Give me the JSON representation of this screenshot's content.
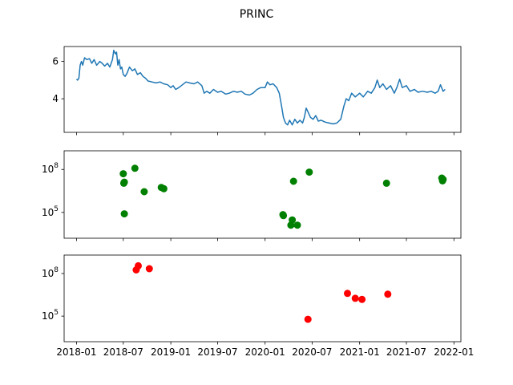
{
  "figure": {
    "title": "PRINC"
  },
  "chart_data": [
    {
      "type": "line",
      "panel": "top",
      "title": "PRINC",
      "xlabel": "",
      "ylabel": "",
      "ylim": [
        2.2,
        6.8
      ],
      "yticks": [
        4,
        6
      ],
      "ytick_labels": [
        "4",
        "6"
      ],
      "grid": false,
      "series": [
        {
          "color": "#1f77b4",
          "points": [
            [
              "2018-01-01",
              5.05
            ],
            [
              "2018-01-05",
              5.0
            ],
            [
              "2018-01-10",
              5.1
            ],
            [
              "2018-01-15",
              5.8
            ],
            [
              "2018-01-20",
              6.0
            ],
            [
              "2018-01-25",
              5.8
            ],
            [
              "2018-02-01",
              6.2
            ],
            [
              "2018-02-10",
              6.1
            ],
            [
              "2018-02-20",
              6.15
            ],
            [
              "2018-03-01",
              5.9
            ],
            [
              "2018-03-10",
              6.1
            ],
            [
              "2018-03-20",
              5.8
            ],
            [
              "2018-04-01",
              6.0
            ],
            [
              "2018-04-10",
              5.9
            ],
            [
              "2018-04-20",
              5.75
            ],
            [
              "2018-05-01",
              5.9
            ],
            [
              "2018-05-10",
              5.7
            ],
            [
              "2018-05-20",
              6.1
            ],
            [
              "2018-05-25",
              6.6
            ],
            [
              "2018-06-01",
              6.4
            ],
            [
              "2018-06-05",
              6.5
            ],
            [
              "2018-06-10",
              5.8
            ],
            [
              "2018-06-15",
              6.1
            ],
            [
              "2018-06-20",
              5.6
            ],
            [
              "2018-06-25",
              5.7
            ],
            [
              "2018-07-01",
              5.3
            ],
            [
              "2018-07-08",
              5.2
            ],
            [
              "2018-07-15",
              5.35
            ],
            [
              "2018-07-25",
              5.7
            ],
            [
              "2018-08-05",
              5.5
            ],
            [
              "2018-08-15",
              5.6
            ],
            [
              "2018-08-25",
              5.3
            ],
            [
              "2018-09-05",
              5.4
            ],
            [
              "2018-09-15",
              5.2
            ],
            [
              "2018-09-25",
              5.1
            ],
            [
              "2018-10-05",
              4.95
            ],
            [
              "2018-10-20",
              4.9
            ],
            [
              "2018-11-05",
              4.85
            ],
            [
              "2018-11-20",
              4.9
            ],
            [
              "2018-12-05",
              4.8
            ],
            [
              "2018-12-20",
              4.75
            ],
            [
              "2019-01-01",
              4.6
            ],
            [
              "2019-01-10",
              4.7
            ],
            [
              "2019-01-20",
              4.5
            ],
            [
              "2019-02-01",
              4.6
            ],
            [
              "2019-02-15",
              4.75
            ],
            [
              "2019-03-01",
              4.9
            ],
            [
              "2019-03-15",
              4.85
            ],
            [
              "2019-04-01",
              4.8
            ],
            [
              "2019-04-15",
              4.9
            ],
            [
              "2019-05-01",
              4.7
            ],
            [
              "2019-05-10",
              4.3
            ],
            [
              "2019-05-20",
              4.4
            ],
            [
              "2019-06-01",
              4.3
            ],
            [
              "2019-06-15",
              4.5
            ],
            [
              "2019-07-01",
              4.35
            ],
            [
              "2019-07-15",
              4.4
            ],
            [
              "2019-08-01",
              4.25
            ],
            [
              "2019-08-15",
              4.3
            ],
            [
              "2019-09-01",
              4.4
            ],
            [
              "2019-09-15",
              4.35
            ],
            [
              "2019-10-01",
              4.4
            ],
            [
              "2019-10-15",
              4.25
            ],
            [
              "2019-11-01",
              4.2
            ],
            [
              "2019-11-15",
              4.3
            ],
            [
              "2019-12-01",
              4.5
            ],
            [
              "2019-12-15",
              4.6
            ],
            [
              "2020-01-01",
              4.6
            ],
            [
              "2020-01-10",
              4.9
            ],
            [
              "2020-01-20",
              4.75
            ],
            [
              "2020-02-01",
              4.8
            ],
            [
              "2020-02-15",
              4.6
            ],
            [
              "2020-02-25",
              4.3
            ],
            [
              "2020-03-05",
              3.6
            ],
            [
              "2020-03-12",
              3.0
            ],
            [
              "2020-03-20",
              2.7
            ],
            [
              "2020-03-28",
              2.6
            ],
            [
              "2020-04-05",
              2.85
            ],
            [
              "2020-04-15",
              2.6
            ],
            [
              "2020-04-25",
              2.9
            ],
            [
              "2020-05-05",
              2.7
            ],
            [
              "2020-05-15",
              2.85
            ],
            [
              "2020-05-25",
              2.7
            ],
            [
              "2020-06-01",
              3.0
            ],
            [
              "2020-06-08",
              3.5
            ],
            [
              "2020-06-15",
              3.3
            ],
            [
              "2020-06-25",
              3.0
            ],
            [
              "2020-07-05",
              2.9
            ],
            [
              "2020-07-15",
              3.1
            ],
            [
              "2020-07-25",
              2.8
            ],
            [
              "2020-08-05",
              2.85
            ],
            [
              "2020-08-20",
              2.75
            ],
            [
              "2020-09-05",
              2.7
            ],
            [
              "2020-09-20",
              2.65
            ],
            [
              "2020-10-05",
              2.7
            ],
            [
              "2020-10-20",
              2.9
            ],
            [
              "2020-11-01",
              3.6
            ],
            [
              "2020-11-10",
              4.0
            ],
            [
              "2020-11-20",
              3.9
            ],
            [
              "2020-12-01",
              4.3
            ],
            [
              "2020-12-15",
              4.1
            ],
            [
              "2021-01-01",
              4.3
            ],
            [
              "2021-01-15",
              4.1
            ],
            [
              "2021-02-01",
              4.4
            ],
            [
              "2021-02-15",
              4.3
            ],
            [
              "2021-03-01",
              4.6
            ],
            [
              "2021-03-10",
              5.0
            ],
            [
              "2021-03-20",
              4.6
            ],
            [
              "2021-04-01",
              4.8
            ],
            [
              "2021-04-15",
              4.5
            ],
            [
              "2021-05-01",
              4.7
            ],
            [
              "2021-05-15",
              4.3
            ],
            [
              "2021-05-25",
              4.6
            ],
            [
              "2021-06-05",
              5.05
            ],
            [
              "2021-06-15",
              4.6
            ],
            [
              "2021-07-01",
              4.7
            ],
            [
              "2021-07-15",
              4.4
            ],
            [
              "2021-08-01",
              4.5
            ],
            [
              "2021-08-15",
              4.35
            ],
            [
              "2021-09-01",
              4.4
            ],
            [
              "2021-09-20",
              4.35
            ],
            [
              "2021-10-05",
              4.4
            ],
            [
              "2021-10-20",
              4.3
            ],
            [
              "2021-11-01",
              4.4
            ],
            [
              "2021-11-10",
              4.75
            ],
            [
              "2021-11-20",
              4.4
            ],
            [
              "2021-11-28",
              4.5
            ]
          ]
        }
      ]
    },
    {
      "type": "scatter",
      "panel": "middle",
      "xlabel": "",
      "ylabel": "",
      "yscale": "log",
      "ylim_log10": [
        3.2,
        9.3
      ],
      "yticks_log10": [
        5,
        8
      ],
      "ytick_labels": [
        "10^5",
        "10^8"
      ],
      "grid": false,
      "series": [
        {
          "color": "#008000",
          "points": [
            [
              "2018-07-01",
              50000000.0
            ],
            [
              "2018-07-03",
              11000000.0
            ],
            [
              "2018-07-05",
              13000000.0
            ],
            [
              "2018-07-05",
              80000.0
            ],
            [
              "2018-08-15",
              120000000.0
            ],
            [
              "2018-09-20",
              2800000.0
            ],
            [
              "2018-11-25",
              5500000.0
            ],
            [
              "2018-12-05",
              4500000.0
            ],
            [
              "2020-03-10",
              70000.0
            ],
            [
              "2020-03-12",
              60000.0
            ],
            [
              "2020-04-10",
              13000.0
            ],
            [
              "2020-04-15",
              30000.0
            ],
            [
              "2020-04-20",
              15000000.0
            ],
            [
              "2020-05-05",
              13000.0
            ],
            [
              "2020-06-20",
              65000000.0
            ],
            [
              "2021-04-15",
              11000000.0
            ],
            [
              "2021-11-15",
              25000000.0
            ],
            [
              "2021-11-18",
              16000000.0
            ],
            [
              "2021-11-20",
              20000000.0
            ]
          ]
        }
      ]
    },
    {
      "type": "scatter",
      "panel": "bottom",
      "xlabel": "",
      "ylabel": "",
      "yscale": "log",
      "ylim_log10": [
        3.2,
        9.3
      ],
      "yticks_log10": [
        5,
        8
      ],
      "ytick_labels": [
        "10^5",
        "10^8"
      ],
      "grid": false,
      "xticks": [
        "2018-01",
        "2018-07",
        "2019-01",
        "2019-07",
        "2020-01",
        "2020-07",
        "2021-01",
        "2021-07",
        "2022-01"
      ],
      "series": [
        {
          "color": "#ff0000",
          "points": [
            [
              "2018-08-20",
              180000000.0
            ],
            [
              "2018-08-28",
              350000000.0
            ],
            [
              "2018-10-10",
              220000000.0
            ],
            [
              "2020-06-15",
              60000.0
            ],
            [
              "2020-11-15",
              4000000.0
            ],
            [
              "2020-12-15",
              1800000.0
            ],
            [
              "2021-01-10",
              1500000.0
            ],
            [
              "2021-04-20",
              3500000.0
            ]
          ]
        }
      ]
    }
  ]
}
